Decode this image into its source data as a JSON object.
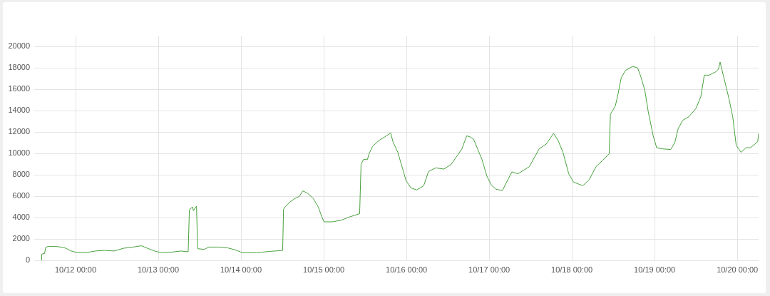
{
  "chart_data": {
    "type": "line",
    "x": [
      "--10-11T14:05",
      "--10-11T14:10",
      "--10-11T15:00",
      "--10-11T15:20",
      "--10-11T15:55",
      "--10-11T18:35",
      "--10-11T20:40",
      "--10-11T22:45",
      "--10-12T00:00",
      "--10-12T02:55",
      "--10-12T05:40",
      "--10-12T08:25",
      "--10-12T11:10",
      "--10-12T13:55",
      "--10-12T16:40",
      "--10-12T19:05",
      "--10-12T20:50",
      "--10-12T22:55",
      "--10-13T00:55",
      "--10-13T03:40",
      "--10-13T06:30",
      "--10-13T08:40",
      "--10-13T09:00",
      "--10-13T09:10",
      "--10-13T10:00",
      "--10-13T10:10",
      "--10-13T11:05",
      "--10-13T11:25",
      "--10-13T13:20",
      "--10-13T14:40",
      "--10-13T17:30",
      "--10-13T20:10",
      "--10-13T22:20",
      "--10-14T00:25",
      "--10-14T04:30",
      "--10-14T05:55",
      "--10-14T08:35",
      "--10-14T12:05",
      "--10-14T12:20",
      "--10-14T12:50",
      "--10-14T14:05",
      "--10-14T15:30",
      "--10-14T16:55",
      "--10-14T17:55",
      "--10-14T19:20",
      "--10-14T21:00",
      "--10-14T22:25",
      "--10-14T23:25",
      "--10-15T00:05",
      "--10-15T02:30",
      "--10-15T05:10",
      "--10-15T07:20",
      "--10-15T10:25",
      "--10-15T10:50",
      "--10-15T11:30",
      "--10-15T12:40",
      "--10-15T13:10",
      "--10-15T14:10",
      "--10-15T16:00",
      "--10-15T17:40",
      "--10-15T19:25",
      "--10-15T20:05",
      "--10-15T21:30",
      "--10-15T22:30",
      "--10-15T23:55",
      "--10-16T01:20",
      "--10-16T03:00",
      "--10-16T05:00",
      "--10-16T06:25",
      "--10-16T08:30",
      "--10-16T10:55",
      "--10-16T13:00",
      "--10-16T14:25",
      "--10-16T16:05",
      "--10-16T17:30",
      "--10-16T18:30",
      "--10-16T19:30",
      "--10-16T20:30",
      "--10-16T21:55",
      "--10-16T23:20",
      "--10-17T00:40",
      "--10-17T02:00",
      "--10-17T03:50",
      "--10-17T06:35",
      "--10-17T08:20",
      "--10-17T11:40",
      "--10-17T14:30",
      "--10-17T16:35",
      "--10-17T18:40",
      "--10-17T20:00",
      "--10-17T21:25",
      "--10-17T23:05",
      "--10-18T00:30",
      "--10-18T03:10",
      "--10-18T05:00",
      "--10-18T07:00",
      "--10-18T08:50",
      "--10-18T10:50",
      "--10-18T11:10",
      "--10-18T12:35",
      "--10-18T13:10",
      "--10-18T14:20",
      "--10-18T15:35",
      "--10-18T17:40",
      "--10-18T19:05",
      "--10-18T20:05",
      "--10-18T21:10",
      "--10-18T22:10",
      "--10-18T23:35",
      "--10-19T00:35",
      "--10-19T02:20",
      "--10-19T04:40",
      "--10-19T05:50",
      "--10-19T06:50",
      "--10-19T08:10",
      "--10-19T09:55",
      "--10-19T12:00",
      "--10-19T13:25",
      "--10-19T14:25",
      "--10-19T15:50",
      "--10-19T17:50",
      "--10-19T18:30",
      "--10-19T19:00",
      "--10-19T19:55",
      "--10-19T21:35",
      "--10-19T22:40",
      "--10-19T23:40",
      "--10-20T01:05",
      "--10-20T02:30",
      "--10-20T03:50",
      "--10-20T05:55",
      "--10-20T06:10"
    ],
    "series": [
      {
        "color": "#47a03c",
        "values": [
          0,
          580,
          640,
          1200,
          1290,
          1290,
          1200,
          870,
          760,
          710,
          870,
          930,
          870,
          1130,
          1240,
          1360,
          1130,
          870,
          710,
          760,
          870,
          800,
          4530,
          4800,
          4980,
          4640,
          5070,
          1090,
          1020,
          1240,
          1240,
          1160,
          980,
          710,
          710,
          760,
          840,
          930,
          4760,
          5020,
          5420,
          5760,
          5980,
          6490,
          6270,
          5760,
          4980,
          4090,
          3600,
          3600,
          3760,
          4040,
          4360,
          8980,
          9420,
          9420,
          9980,
          10640,
          11200,
          11530,
          11910,
          11090,
          10090,
          8980,
          7420,
          6760,
          6580,
          6980,
          8310,
          8640,
          8530,
          8980,
          9640,
          10420,
          11640,
          11530,
          11310,
          10530,
          9420,
          7870,
          7020,
          6640,
          6530,
          8270,
          8090,
          8760,
          10420,
          10870,
          11870,
          11200,
          10090,
          8090,
          7310,
          6980,
          7530,
          8760,
          9310,
          9980,
          13640,
          14420,
          15200,
          17090,
          17760,
          18130,
          17980,
          17090,
          15870,
          13870,
          11640,
          10530,
          10420,
          10360,
          10980,
          12310,
          13090,
          13420,
          14200,
          15310,
          17310,
          17310,
          17640,
          17870,
          18530,
          17310,
          15090,
          13420,
          10760,
          10090,
          10530,
          10530,
          11090,
          11870
        ]
      }
    ],
    "xlim": [
      "--10-11T12:00",
      "--10-20T06:10"
    ],
    "xticks": [
      {
        "value": "--10-12T00:00",
        "label": "10/12 00:00"
      },
      {
        "value": "--10-13T00:00",
        "label": "10/13 00:00"
      },
      {
        "value": "--10-14T00:00",
        "label": "10/14 00:00"
      },
      {
        "value": "--10-15T00:00",
        "label": "10/15 00:00"
      },
      {
        "value": "--10-16T00:00",
        "label": "10/16 00:00"
      },
      {
        "value": "--10-17T00:00",
        "label": "10/17 00:00"
      },
      {
        "value": "--10-18T00:00",
        "label": "10/18 00:00"
      },
      {
        "value": "--10-19T00:00",
        "label": "10/19 00:00"
      },
      {
        "value": "--10-20T00:00",
        "label": "10/20 00:00"
      }
    ],
    "ylim": [
      0,
      21000
    ],
    "yticks": [
      0,
      2000,
      4000,
      6000,
      8000,
      10000,
      12000,
      14000,
      16000,
      18000,
      20000
    ],
    "grid": true
  }
}
